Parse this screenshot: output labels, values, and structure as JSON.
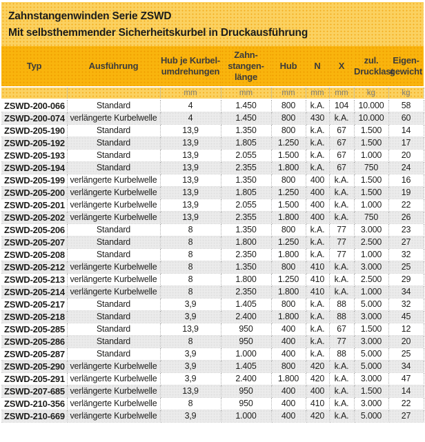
{
  "banner": {
    "title": "Zahnstangenwinden Serie ZSWD",
    "subtitle": "Mit selbsthemmender Sicherheitskurbel in Druckausführung"
  },
  "table": {
    "columns": [
      {
        "key": "typ",
        "label": "Typ",
        "unit": ""
      },
      {
        "key": "ausfuehrung",
        "label": "Ausführung",
        "unit": ""
      },
      {
        "key": "hub-je-kurbelumdrehung",
        "label": "Hub je Kurbel-\numdrehungen",
        "unit": "mm"
      },
      {
        "key": "zahnstangenlaenge",
        "label": "Zahn-\nstangen-\nlänge",
        "unit": "mm"
      },
      {
        "key": "hub",
        "label": "Hub",
        "unit": "mm"
      },
      {
        "key": "n",
        "label": "N",
        "unit": "mm"
      },
      {
        "key": "x",
        "label": "X",
        "unit": "mm"
      },
      {
        "key": "zul-drucklast",
        "label": "zul.\nDrucklast",
        "unit": "kg"
      },
      {
        "key": "eigengewicht",
        "label": "Eigen-\ngewicht",
        "unit": "kg"
      }
    ],
    "rows": [
      [
        "ZSWD-200-066",
        "Standard",
        "4",
        "1.450",
        "800",
        "k.A.",
        "104",
        "10.000",
        "58"
      ],
      [
        "ZSWD-200-074",
        "verlängerte Kurbelwelle",
        "4",
        "1.450",
        "800",
        "430",
        "k.A.",
        "10.000",
        "60"
      ],
      [
        "ZSWD-205-190",
        "Standard",
        "13,9",
        "1.350",
        "800",
        "k.A.",
        "67",
        "1.500",
        "14"
      ],
      [
        "ZSWD-205-192",
        "Standard",
        "13,9",
        "1.805",
        "1.250",
        "k.A.",
        "67",
        "1.500",
        "17"
      ],
      [
        "ZSWD-205-193",
        "Standard",
        "13,9",
        "2.055",
        "1.500",
        "k.A.",
        "67",
        "1.000",
        "20"
      ],
      [
        "ZSWD-205-194",
        "Standard",
        "13,9",
        "2.355",
        "1.800",
        "k.A.",
        "67",
        "750",
        "24"
      ],
      [
        "ZSWD-205-199",
        "verlängerte Kurbelwelle",
        "13,9",
        "1.350",
        "800",
        "400",
        "k.A.",
        "1.500",
        "16"
      ],
      [
        "ZSWD-205-200",
        "verlängerte Kurbelwelle",
        "13,9",
        "1.805",
        "1.250",
        "400",
        "k.A.",
        "1.500",
        "19"
      ],
      [
        "ZSWD-205-201",
        "verlängerte Kurbelwelle",
        "13,9",
        "2.055",
        "1.500",
        "400",
        "k.A.",
        "1.000",
        "22"
      ],
      [
        "ZSWD-205-202",
        "verlängerte Kurbelwelle",
        "13,9",
        "2.355",
        "1.800",
        "400",
        "k.A.",
        "750",
        "26"
      ],
      [
        "ZSWD-205-206",
        "Standard",
        "8",
        "1.350",
        "800",
        "k.A.",
        "77",
        "3.000",
        "23"
      ],
      [
        "ZSWD-205-207",
        "Standard",
        "8",
        "1.800",
        "1.250",
        "k.A.",
        "77",
        "2.500",
        "27"
      ],
      [
        "ZSWD-205-208",
        "Standard",
        "8",
        "2.350",
        "1.800",
        "k.A.",
        "77",
        "1.000",
        "32"
      ],
      [
        "ZSWD-205-212",
        "verlängerte Kurbelwelle",
        "8",
        "1.350",
        "800",
        "410",
        "k.A.",
        "3.000",
        "25"
      ],
      [
        "ZSWD-205-213",
        "verlängerte Kurbelwelle",
        "8",
        "1.800",
        "1.250",
        "410",
        "k.A.",
        "2.500",
        "29"
      ],
      [
        "ZSWD-205-214",
        "verlängerte Kurbelwelle",
        "8",
        "2.350",
        "1.800",
        "410",
        "k.A.",
        "1.000",
        "34"
      ],
      [
        "ZSWD-205-217",
        "Standard",
        "3,9",
        "1.405",
        "800",
        "k.A.",
        "88",
        "5.000",
        "32"
      ],
      [
        "ZSWD-205-218",
        "Standard",
        "3,9",
        "2.400",
        "1.800",
        "k.A.",
        "88",
        "3.000",
        "45"
      ],
      [
        "ZSWD-205-285",
        "Standard",
        "13,9",
        "950",
        "400",
        "k.A.",
        "67",
        "1.500",
        "12"
      ],
      [
        "ZSWD-205-286",
        "Standard",
        "8",
        "950",
        "400",
        "k.A.",
        "77",
        "3.000",
        "20"
      ],
      [
        "ZSWD-205-287",
        "Standard",
        "3,9",
        "1.000",
        "400",
        "k.A.",
        "88",
        "5.000",
        "25"
      ],
      [
        "ZSWD-205-290",
        "verlängerte Kurbelwelle",
        "3,9",
        "1.405",
        "800",
        "420",
        "k.A.",
        "5.000",
        "34"
      ],
      [
        "ZSWD-205-291",
        "verlängerte Kurbelwelle",
        "3,9",
        "2.400",
        "1.800",
        "420",
        "k.A.",
        "3.000",
        "47"
      ],
      [
        "ZSWD-207-685",
        "verlängerte Kurbelwelle",
        "13,9",
        "950",
        "400",
        "400",
        "k.A.",
        "1.500",
        "14"
      ],
      [
        "ZSWD-210-356",
        "verlängerte Kurbelwelle",
        "8",
        "950",
        "400",
        "410",
        "k.A.",
        "3.000",
        "22"
      ],
      [
        "ZSWD-210-669",
        "verlängerte Kurbelwelle",
        "3,9",
        "1.000",
        "400",
        "420",
        "k.A.",
        "5.000",
        "27"
      ]
    ]
  },
  "colors": {
    "banner_bg": "#FBD160",
    "banner_dot": "#F3AC1C",
    "header_bg": "#F9B40D",
    "header_dot": "#EE9B00",
    "stripe_gray": "#EBEBEB",
    "stripe_dot": "#DFDFDF",
    "text_dark": "#1D1D1B",
    "text_header": "#3C3C3B",
    "text_units": "#7C7B74",
    "border_v": "#ADADAD",
    "border_h": "#C9C9C9"
  }
}
